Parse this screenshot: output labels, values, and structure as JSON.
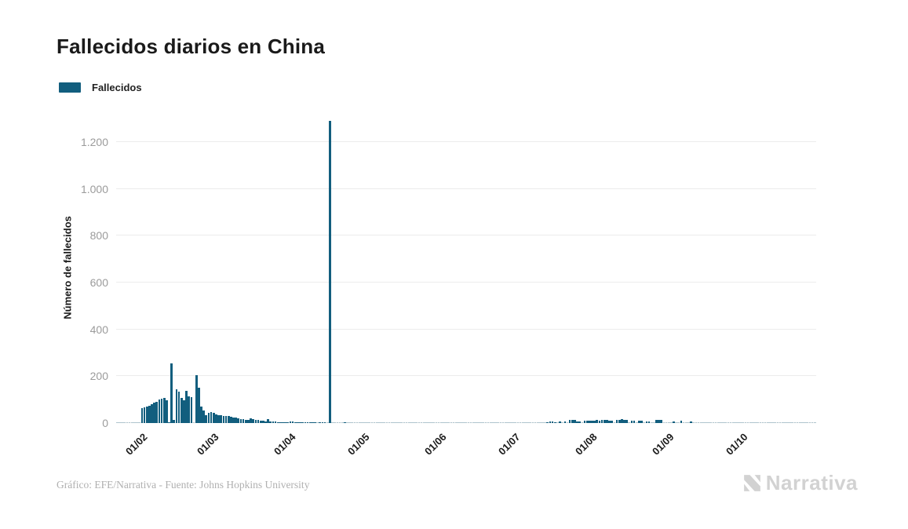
{
  "title": "Fallecidos diarios en China",
  "legend": {
    "label": "Fallecidos"
  },
  "y_axis": {
    "title": "Número de fallecidos",
    "tick_labels": [
      "0",
      "200",
      "400",
      "600",
      "800",
      "1.000",
      "1.200"
    ],
    "tick_values": [
      0,
      200,
      400,
      600,
      800,
      1000,
      1200
    ]
  },
  "x_axis": {
    "ticks": [
      {
        "label": "01/02",
        "day": 10
      },
      {
        "label": "01/03",
        "day": 39
      },
      {
        "label": "01/04",
        "day": 70
      },
      {
        "label": "01/05",
        "day": 100
      },
      {
        "label": "01/06",
        "day": 131
      },
      {
        "label": "01/07",
        "day": 161
      },
      {
        "label": "01/08",
        "day": 192
      },
      {
        "label": "01/09",
        "day": 223
      },
      {
        "label": "01/10",
        "day": 253
      }
    ]
  },
  "footer": {
    "credit": "Gráfico: EFE/Narrativa - Fuente: Johns Hopkins University",
    "brand": "Narrativa"
  },
  "colors": {
    "bar": "#125e7e",
    "zero_stub": "rgba(18,94,126,0.28)",
    "grid": "#ececec",
    "tick_text": "#9b9b9b",
    "text": "#1a1a1a",
    "footer_text": "#b0b0b0",
    "logo": "#d2d2d2"
  },
  "chart_data": {
    "type": "bar",
    "title": "Fallecidos diarios en China",
    "ylabel": "Número de fallecidos",
    "xlabel": "",
    "series_name": "Fallecidos",
    "unit": "fallecidos por día",
    "start_date": "2020-01-22",
    "end_date": "2020-10-30",
    "ylim": [
      0,
      1327
    ],
    "grid": true,
    "legend_position": "top-left",
    "peak_annotation": {
      "date": "2020-04-17",
      "value": 1290
    },
    "monthly_tick_labels": [
      "01/02",
      "01/03",
      "01/04",
      "01/05",
      "01/06",
      "01/07",
      "01/08",
      "01/09",
      "01/10"
    ],
    "values": [
      0,
      0,
      0,
      0,
      0,
      0,
      0,
      0,
      0,
      0,
      65,
      68,
      72,
      75,
      81,
      87,
      92,
      99,
      105,
      108,
      97,
      5,
      254,
      13,
      143,
      134,
      106,
      98,
      136,
      115,
      110,
      0,
      205,
      150,
      71,
      52,
      35,
      44,
      47,
      42,
      38,
      35,
      33,
      31,
      30,
      29,
      28,
      25,
      22,
      21,
      18,
      16,
      14,
      13,
      20,
      17,
      14,
      12,
      10,
      9,
      8,
      16,
      7,
      6,
      6,
      5,
      4,
      4,
      5,
      4,
      6,
      7,
      5,
      4,
      3,
      3,
      2,
      2,
      2,
      1,
      2,
      0,
      1,
      1,
      1,
      0,
      1290,
      0,
      0,
      0,
      0,
      0,
      1,
      0,
      0,
      0,
      0,
      0,
      0,
      0,
      0,
      0,
      0,
      0,
      0,
      0,
      0,
      0,
      0,
      0,
      0,
      0,
      0,
      0,
      0,
      0,
      0,
      0,
      0,
      0,
      0,
      0,
      0,
      0,
      0,
      0,
      0,
      0,
      0,
      0,
      0,
      0,
      0,
      0,
      0,
      0,
      0,
      0,
      0,
      0,
      0,
      0,
      0,
      0,
      0,
      0,
      0,
      0,
      0,
      0,
      0,
      0,
      0,
      0,
      0,
      0,
      0,
      0,
      0,
      0,
      0,
      0,
      0,
      0,
      0,
      0,
      0,
      0,
      0,
      0,
      0,
      0,
      0,
      0,
      3,
      6,
      6,
      3,
      0,
      6,
      0,
      6,
      0,
      13,
      15,
      13,
      6,
      6,
      0,
      10,
      10,
      10,
      10,
      11,
      12,
      11,
      12,
      13,
      12,
      11,
      10,
      0,
      14,
      15,
      16,
      15,
      13,
      0,
      10,
      10,
      0,
      10,
      10,
      0,
      8,
      8,
      0,
      0,
      13,
      13,
      13,
      0,
      0,
      0,
      0,
      6,
      0,
      0,
      10,
      0,
      0,
      0,
      6,
      0,
      0,
      0,
      0,
      0,
      0,
      0,
      0,
      0,
      0,
      0,
      0,
      0,
      0,
      0,
      0,
      0,
      0,
      0,
      0,
      0,
      0,
      0,
      0,
      0,
      0,
      0,
      0,
      0,
      0,
      0,
      0,
      0,
      0,
      0,
      0,
      0,
      0,
      0,
      0,
      0,
      0,
      0,
      0,
      0,
      0,
      0,
      0,
      0,
      0
    ]
  }
}
